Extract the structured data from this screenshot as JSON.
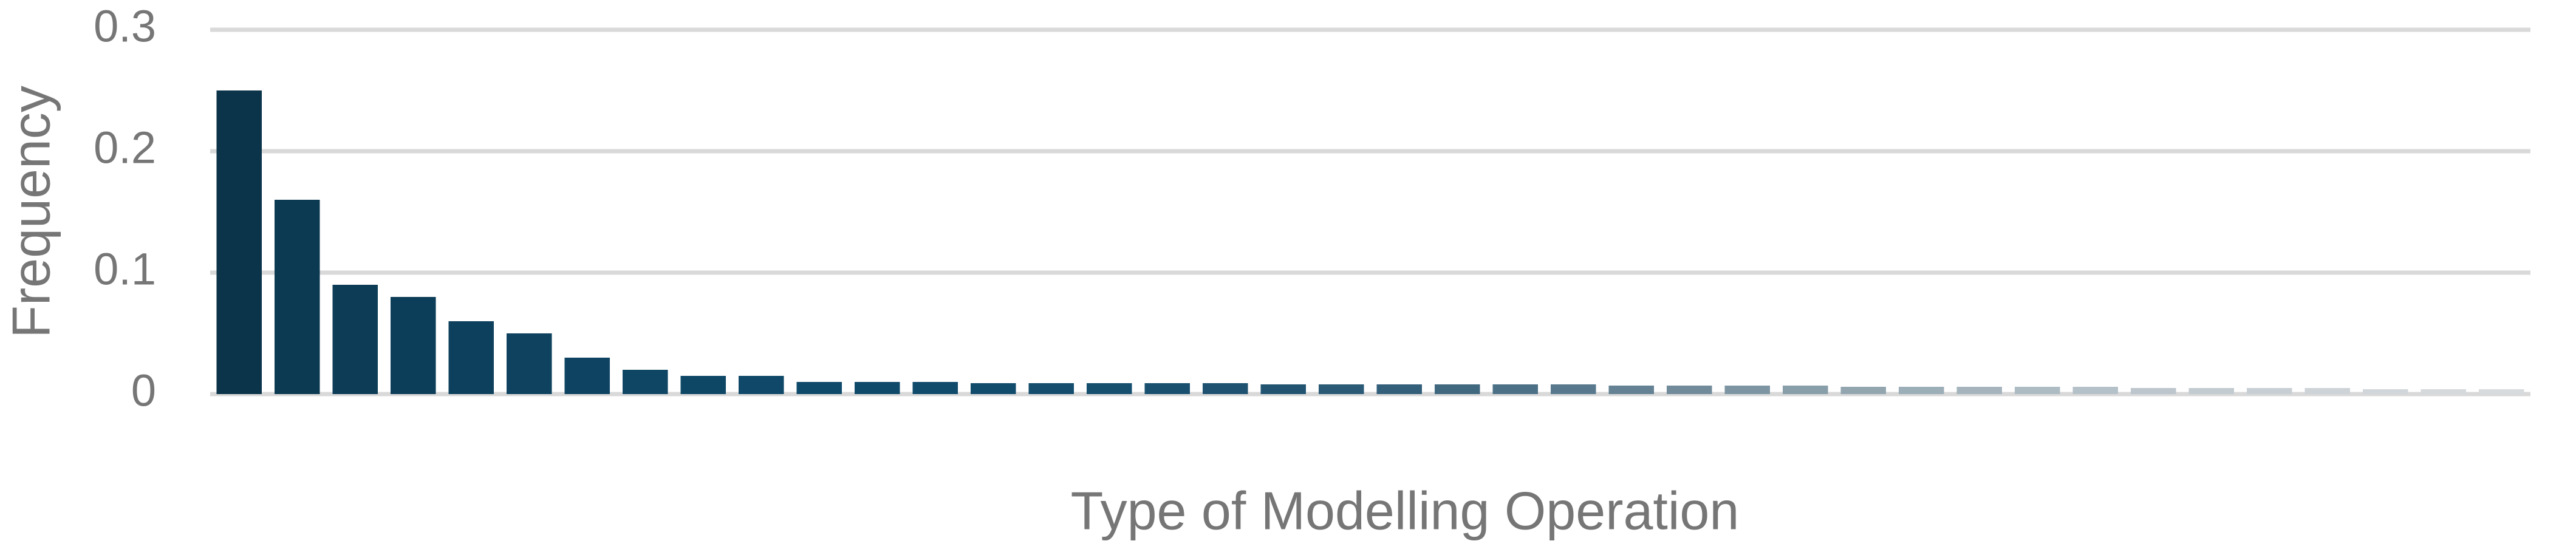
{
  "chart_data": {
    "type": "bar",
    "x_label": "Type of Modelling Operation",
    "y_label": "Frequency",
    "categories": [
      null,
      null,
      null,
      null,
      null,
      null,
      null,
      null,
      null,
      null,
      null,
      null,
      null,
      null,
      null,
      null,
      null,
      null,
      null,
      null,
      null,
      null,
      null,
      null,
      null,
      null,
      null,
      null,
      null,
      null,
      null,
      null,
      null,
      null,
      null,
      null,
      null,
      null,
      null,
      null
    ],
    "values": [
      0.25,
      0.16,
      0.09,
      0.08,
      0.06,
      0.05,
      0.03,
      0.02,
      0.015,
      0.015,
      0.01,
      0.01,
      0.01,
      0.009,
      0.009,
      0.009,
      0.009,
      0.009,
      0.008,
      0.008,
      0.008,
      0.008,
      0.008,
      0.008,
      0.007,
      0.007,
      0.007,
      0.007,
      0.006,
      0.006,
      0.006,
      0.006,
      0.006,
      0.005,
      0.005,
      0.005,
      0.005,
      0.004,
      0.004,
      0.004
    ],
    "colors": [
      "#0b3349",
      "#0c3a52",
      "#0c3c56",
      "#0d3e59",
      "#0d405c",
      "#0e425f",
      "#0e4462",
      "#0e4664",
      "#0e4766",
      "#0f4868",
      "#0f4a6a",
      "#0f4a6a",
      "#104b6b",
      "#124c6c",
      "#144d6d",
      "#164e6e",
      "#1a506f",
      "#1e5270",
      "#225472",
      "#2a5a76",
      "#345f7a",
      "#40687f",
      "#4c7086",
      "#58798d",
      "#648294",
      "#718b9b",
      "#7d95a3",
      "#889ea9",
      "#93a6b0",
      "#9caeb7",
      "#a5b4bd",
      "#adbbc3",
      "#b5c1c8",
      "#bcc6cc",
      "#c2cbd0",
      "#c8cfd4",
      "#cdd3d7",
      "#d1d6da",
      "#d5d9dc",
      "#d8dbde"
    ],
    "ylim": [
      0,
      0.3
    ],
    "yticks": [
      0,
      0.1,
      0.2,
      0.3
    ],
    "grid": true
  }
}
